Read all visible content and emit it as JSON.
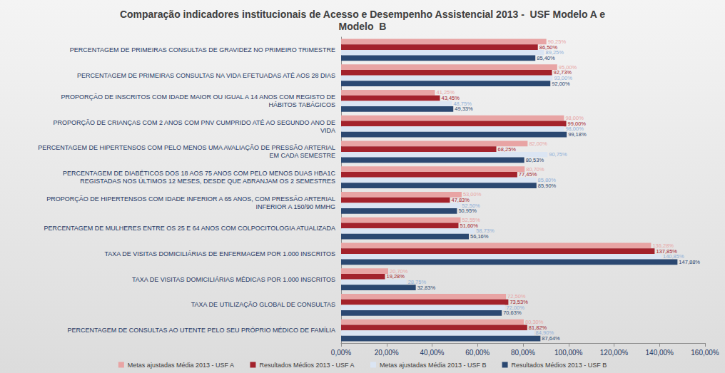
{
  "chart_data": {
    "type": "bar",
    "orientation": "horizontal",
    "title": "Comparação indicadores institucionais de Acesso e Desempenho Assistencial 2013 -  USF Modelo A e\nModelo  B",
    "categories": [
      "PERCENTAGEM DE PRIMEIRAS CONSULTAS DE GRAVIDEZ NO PRIMEIRO TRIMESTRE",
      "PERCENTAGEM DE PRIMEIRAS CONSULTAS NA VIDA EFETUADAS ATÉ AOS 28 DIAS",
      "PROPORÇÃO DE INSCRITOS COM IDADE MAIOR OU IGUAL A 14 ANOS COM REGISTO DE\nHÁBITOS TABÁGICOS",
      "PROPORÇÃO DE CRIANÇAS COM 2 ANOS COM PNV CUMPRIDO ATÉ AO SEGUNDO ANO DE\nVIDA",
      "PERCENTAGEM DE HIPERTENSOS COM PELO MENOS UMA AVALIAÇÃO DE PRESSÃO ARTERIAL\nEM CADA SEMESTRE",
      "PERCENTAGEM DE DIABÉTICOS DOS 18 AOS 75 ANOS COM PELO MENOS DUAS HBA1C\nREGISTADAS NOS ÚLTIMOS 12 MESES, DESDE QUE ABRANJAM OS 2 SEMESTRES",
      "PROPORÇÃO DE HIPERTENSOS COM IDADE INFERIOR A 65 ANOS, COM PRESSÃO ARTERIAL\nINFERIOR A 150/90 MMHG",
      "PERCENTAGEM DE MULHERES ENTRE OS 25 E 64 ANOS COM COLPOCITOLOGIA ATUALIZADA",
      "TAXA DE VISITAS DOMICILIÁRIAS DE ENFERMAGEM POR 1.000 INSCRITOS",
      "TAXA DE VISITAS DOMICILIÁRIAS MÉDICAS POR 1.000 INSCRITOS",
      "TAXA DE UTILIZAÇÃO GLOBAL DE CONSULTAS",
      "PERCENTAGEM DE CONSULTAS AO UTENTE PELO SEU PRÓPRIO MÉDICO DE FAMÍLIA"
    ],
    "series": [
      {
        "name": "Metas ajustadas Média 2013 - USF A",
        "color": "#e8a4a4",
        "values": [
          90.25,
          95.0,
          41.25,
          98.0,
          82.0,
          80.7,
          53.0,
          52.55,
          136.28,
          20.7,
          72.5,
          80.3
        ],
        "value_labels": [
          "90,25%",
          "95,00%",
          "41,25%",
          "98,00%",
          "82,00%",
          "80,70%",
          "53,00%",
          "52,55%",
          "136,28%",
          "20,70%",
          "72,50%",
          "80,30%"
        ]
      },
      {
        "name": "Resultados Médios 2013 - USF A",
        "color": "#a3222c",
        "values": [
          86.5,
          92.73,
          43.45,
          99.0,
          68.25,
          77.45,
          47.83,
          51.6,
          137.85,
          19.28,
          73.53,
          81.82
        ],
        "value_labels": [
          "86,50%",
          "92,73%",
          "43,45%",
          "99,00%",
          "68,25%",
          "77,45%",
          "47,83%",
          "51,60%",
          "137,85%",
          "19,28%",
          "73,53%",
          "81,82%"
        ]
      },
      {
        "name": "Metas ajustadas Média 2013 - USF B",
        "color": "#dbe5f3",
        "values": [
          89.25,
          93.0,
          48.75,
          98.0,
          90.75,
          85.8,
          52.5,
          58.73,
          140.85,
          28.75,
          72.0,
          84.9
        ],
        "value_labels": [
          "89,25%",
          "93,00%",
          "48,75%",
          "98,00%",
          "90,75%",
          "85,80%",
          "52,50%",
          "58,73%",
          "140,85%",
          "28,75%",
          "72,00%",
          "84,90%"
        ]
      },
      {
        "name": "Resultados Médios 2013 - USF B",
        "color": "#2b4871",
        "values": [
          85.4,
          92.0,
          49.33,
          99.18,
          80.53,
          85.9,
          50.95,
          56.16,
          147.88,
          32.83,
          70.63,
          87.64
        ],
        "value_labels": [
          "85,40%",
          "92,00%",
          "49,33%",
          "99,18%",
          "80,53%",
          "85,90%",
          "50,95%",
          "56,16%",
          "147,88%",
          "32,83%",
          "70,63%",
          "87,64%"
        ]
      }
    ],
    "xlim": [
      0,
      160
    ],
    "xticks": [
      {
        "value": 0,
        "label": "0,00%"
      },
      {
        "value": 20,
        "label": "20,00%"
      },
      {
        "value": 40,
        "label": "40,00%"
      },
      {
        "value": 60,
        "label": "60,00%"
      },
      {
        "value": 80,
        "label": "80,00%"
      },
      {
        "value": 100,
        "label": "100,00%"
      },
      {
        "value": 120,
        "label": "120,00%"
      },
      {
        "value": 140,
        "label": "140,00%"
      },
      {
        "value": 160,
        "label": "160,00%"
      }
    ],
    "grid": false,
    "legend": "bottom",
    "data_labels": true
  }
}
